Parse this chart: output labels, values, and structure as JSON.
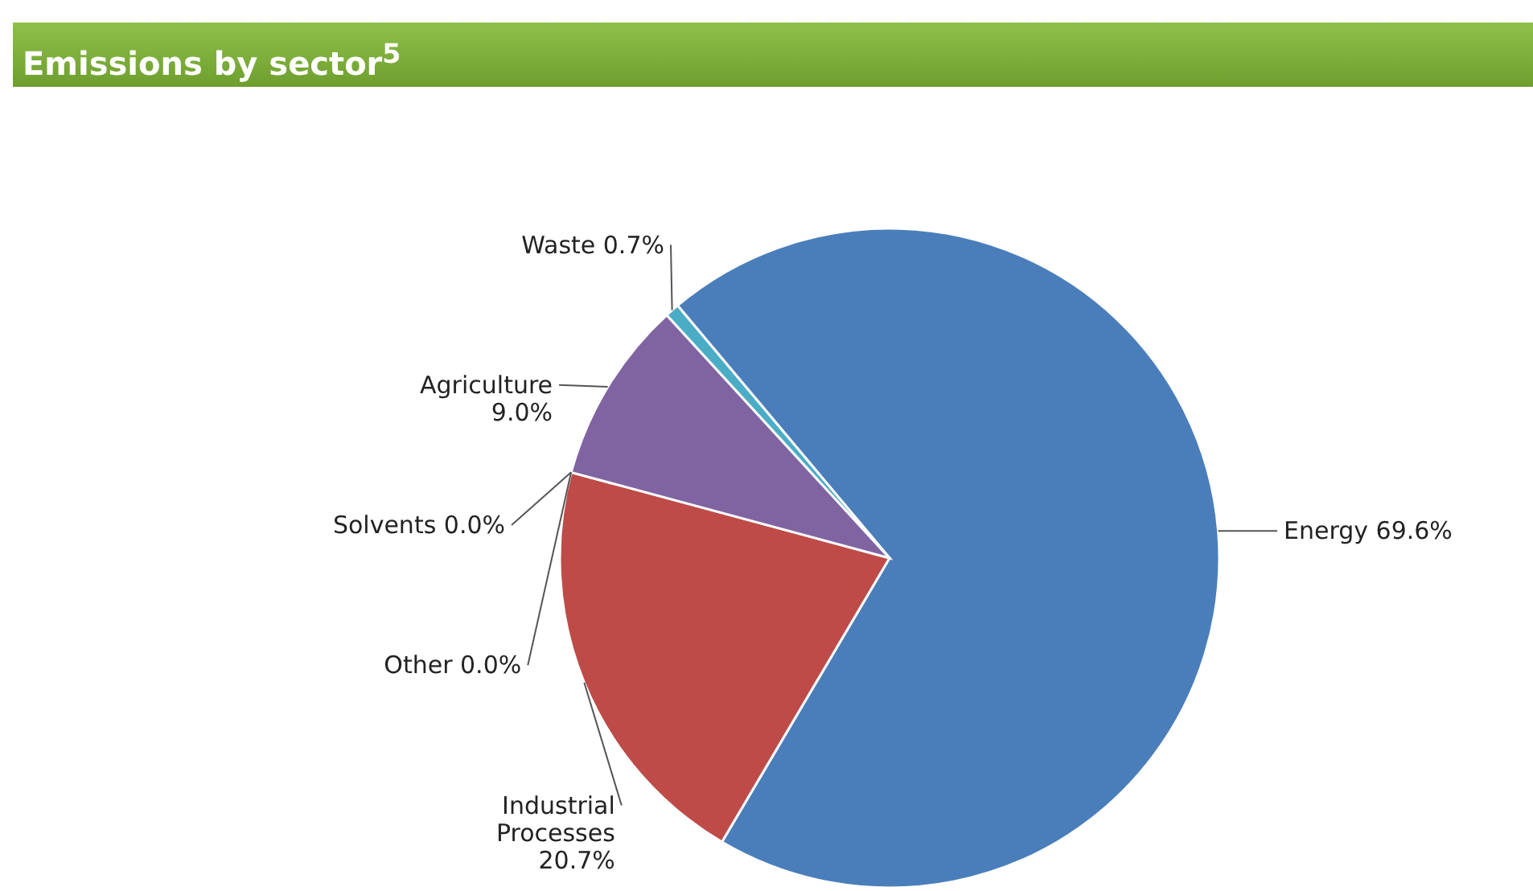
{
  "chart_data": {
    "type": "pie",
    "title": "Emissions by sector$^{5}$",
    "categories": [
      "Energy",
      "Industrial Processes",
      "Other",
      "Solvents",
      "Agriculture",
      "Waste"
    ],
    "values": [
      69.6,
      20.7,
      0.0,
      0.0,
      9.0,
      0.7
    ],
    "value_labels": [
      "69.6%",
      "20.7%",
      "0.0%",
      "0.0%",
      "9.0%",
      "0.7%"
    ],
    "colors": [
      "#4a7ebb",
      "#be4b48",
      "#9bbb59",
      "#f79646",
      "#8064a2",
      "#4bacc6"
    ]
  }
}
